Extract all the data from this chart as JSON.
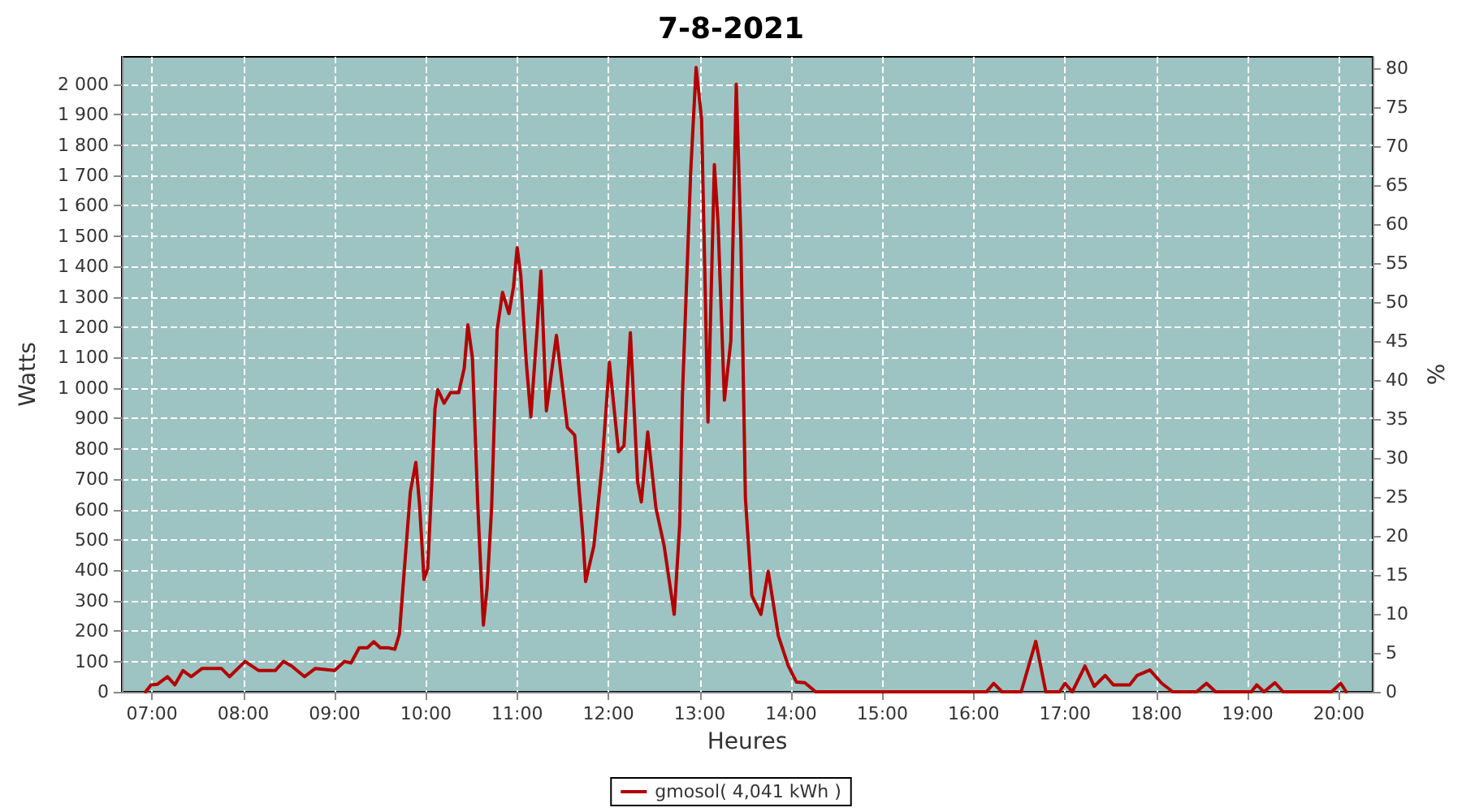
{
  "chart_data": {
    "type": "line",
    "title": "7-8-2021",
    "xlabel": "Heures",
    "ylabel": "Watts",
    "y2label": "%",
    "xlim": [
      6.67,
      20.37
    ],
    "xticks": [
      {
        "value": 7,
        "label": "07:00"
      },
      {
        "value": 8,
        "label": "08:00"
      },
      {
        "value": 9,
        "label": "09:00"
      },
      {
        "value": 10,
        "label": "10:00"
      },
      {
        "value": 11,
        "label": "11:00"
      },
      {
        "value": 12,
        "label": "12:00"
      },
      {
        "value": 13,
        "label": "13:00"
      },
      {
        "value": 14,
        "label": "14:00"
      },
      {
        "value": 15,
        "label": "15:00"
      },
      {
        "value": 16,
        "label": "16:00"
      },
      {
        "value": 17,
        "label": "17:00"
      },
      {
        "value": 18,
        "label": "18:00"
      },
      {
        "value": 19,
        "label": "19:00"
      },
      {
        "value": 20,
        "label": "20:00"
      }
    ],
    "ylim": [
      0,
      2090
    ],
    "yticks": [
      0,
      100,
      200,
      300,
      400,
      500,
      600,
      700,
      800,
      900,
      {
        "value": 1000,
        "label": "1 000"
      },
      {
        "value": 1100,
        "label": "1 100"
      },
      {
        "value": 1200,
        "label": "1 200"
      },
      {
        "value": 1300,
        "label": "1 300"
      },
      {
        "value": 1400,
        "label": "1 400"
      },
      {
        "value": 1500,
        "label": "1 500"
      },
      {
        "value": 1600,
        "label": "1 600"
      },
      {
        "value": 1700,
        "label": "1 700"
      },
      {
        "value": 1800,
        "label": "1 800"
      },
      {
        "value": 1900,
        "label": "1 900"
      },
      {
        "value": 2000,
        "label": "2 000"
      }
    ],
    "y2lim": [
      0,
      81.5
    ],
    "y2ticks": [
      0,
      5,
      10,
      15,
      20,
      25,
      30,
      35,
      40,
      45,
      50,
      55,
      60,
      65,
      70,
      75,
      80
    ],
    "x": [
      6.93,
      6.99,
      7.06,
      7.17,
      7.25,
      7.34,
      7.43,
      7.55,
      7.76,
      7.85,
      8.02,
      8.17,
      8.35,
      8.44,
      8.53,
      8.67,
      8.79,
      9.0,
      9.11,
      9.18,
      9.27,
      9.36,
      9.43,
      9.5,
      9.59,
      9.66,
      9.71,
      9.77,
      9.83,
      9.89,
      9.93,
      9.98,
      10.02,
      10.07,
      10.1,
      10.13,
      10.2,
      10.27,
      10.36,
      10.42,
      10.46,
      10.51,
      10.57,
      10.63,
      10.67,
      10.72,
      10.78,
      10.84,
      10.91,
      10.96,
      11.0,
      11.04,
      11.1,
      11.15,
      11.22,
      11.26,
      11.32,
      11.43,
      11.55,
      11.63,
      11.72,
      11.75,
      11.84,
      11.93,
      12.01,
      12.11,
      12.17,
      12.24,
      12.32,
      12.36,
      12.43,
      12.52,
      12.61,
      12.72,
      12.78,
      12.81,
      12.9,
      12.96,
      13.02,
      13.09,
      13.16,
      13.2,
      13.27,
      13.34,
      13.4,
      13.45,
      13.5,
      13.57,
      13.67,
      13.75,
      13.86,
      13.97,
      14.06,
      14.15,
      14.27,
      16.14,
      16.22,
      16.31,
      16.52,
      16.68,
      16.79,
      16.94,
      17.0,
      17.08,
      17.22,
      17.32,
      17.44,
      17.53,
      17.71,
      17.79,
      17.93,
      18.06,
      18.18,
      18.44,
      18.55,
      18.65,
      19.04,
      19.1,
      19.18,
      19.3,
      19.39,
      19.92,
      20.02,
      20.08
    ],
    "series": [
      {
        "name": "gmosol( 4,041 kWh )",
        "color": "#b30000",
        "values": [
          0,
          23,
          25,
          50,
          23,
          70,
          50,
          77,
          77,
          50,
          100,
          70,
          70,
          100,
          85,
          50,
          77,
          70,
          100,
          95,
          145,
          145,
          165,
          145,
          145,
          140,
          190,
          425,
          657,
          755,
          620,
          370,
          405,
          718,
          932,
          995,
          950,
          985,
          985,
          1065,
          1208,
          1100,
          605,
          220,
          340,
          605,
          1190,
          1315,
          1245,
          1333,
          1462,
          1370,
          1085,
          905,
          1200,
          1385,
          925,
          1173,
          870,
          845,
          513,
          363,
          480,
          745,
          1085,
          790,
          810,
          1182,
          690,
          625,
          855,
          605,
          480,
          255,
          550,
          975,
          1707,
          2055,
          1885,
          888,
          1735,
          1545,
          960,
          1155,
          2000,
          1490,
          638,
          317,
          255,
          397,
          185,
          85,
          32,
          30,
          0,
          0,
          28,
          0,
          0,
          166,
          0,
          0,
          28,
          0,
          85,
          18,
          54,
          23,
          23,
          54,
          72,
          28,
          0,
          0,
          28,
          0,
          0,
          23,
          0,
          30,
          0,
          0,
          28,
          0
        ]
      }
    ],
    "grid": true,
    "legend": "bottom",
    "marker": "none",
    "line_style": "solid"
  }
}
